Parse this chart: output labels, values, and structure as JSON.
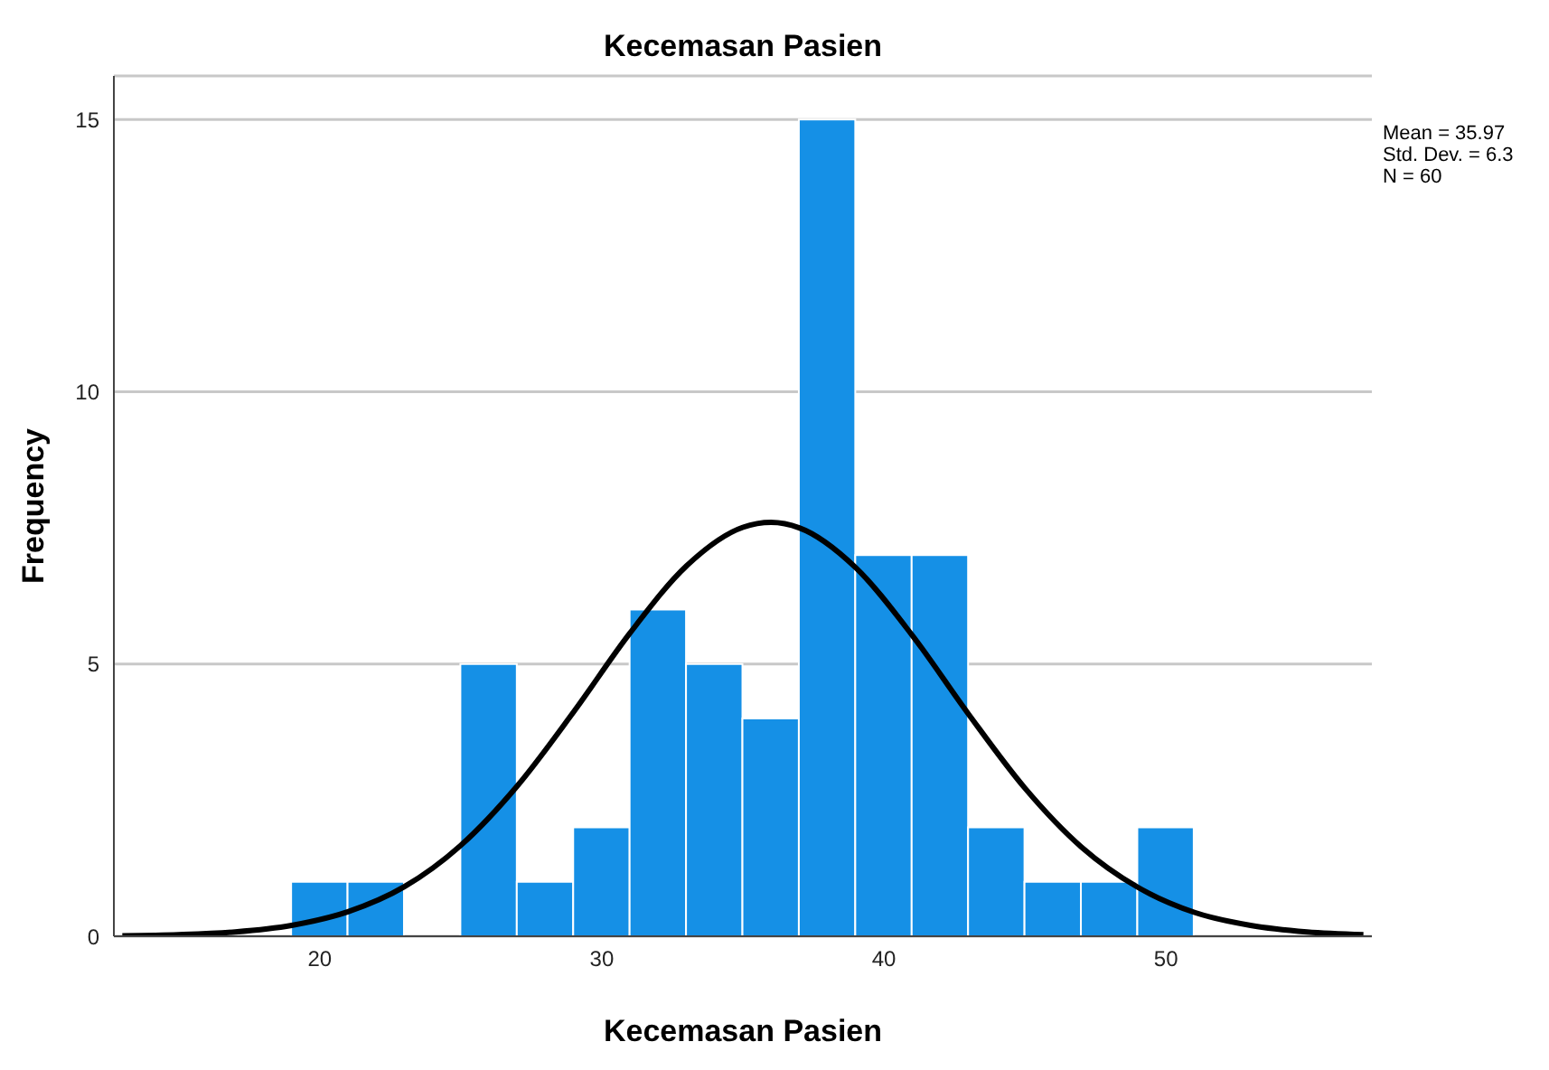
{
  "chart_data": {
    "type": "histogram",
    "title": "Kecemasan Pasien",
    "xlabel": "Kecemasan Pasien",
    "ylabel": "Frequency",
    "bins": [
      19,
      21,
      23,
      25,
      27,
      29,
      31,
      33,
      35,
      37,
      39,
      41,
      43,
      45,
      47,
      49,
      51
    ],
    "values": [
      1,
      1,
      0,
      5,
      1,
      2,
      6,
      5,
      4,
      15,
      7,
      7,
      2,
      1,
      1,
      2
    ],
    "color": "#1590e6",
    "series": [
      {
        "type": "line",
        "color": "#000000",
        "x": [
          13,
          15,
          17,
          19,
          21,
          23,
          25,
          27,
          29,
          31,
          33,
          35,
          36,
          37,
          39,
          41,
          43,
          45,
          47,
          49,
          51,
          53,
          55,
          57
        ],
        "values": [
          0.01,
          0.03,
          0.08,
          0.2,
          0.45,
          0.91,
          1.67,
          2.76,
          4.12,
          5.57,
          6.8,
          7.51,
          7.6,
          7.5,
          6.77,
          5.53,
          4.08,
          2.72,
          1.64,
          0.9,
          0.44,
          0.2,
          0.08,
          0.03
        ]
      }
    ],
    "xlim": [
      12.7,
      57.3
    ],
    "xticks": [
      20,
      30,
      40,
      50
    ],
    "ylim": [
      0,
      15.8
    ],
    "yticks": [
      0,
      5,
      10,
      15
    ],
    "grid": "y",
    "marker": "none",
    "annotations": [
      "Mean = 35.97",
      "Std. Dev. = 6.3",
      "N = 60"
    ]
  }
}
